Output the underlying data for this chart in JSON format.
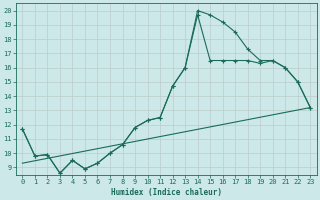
{
  "xlabel": "Humidex (Indice chaleur)",
  "bg_color": "#cce8e8",
  "line_color": "#1a6b5a",
  "grid_color": "#aacccc",
  "xlim": [
    -0.5,
    23.5
  ],
  "ylim": [
    8.5,
    20.5
  ],
  "xticks": [
    0,
    1,
    2,
    3,
    4,
    5,
    6,
    7,
    8,
    9,
    10,
    11,
    12,
    13,
    14,
    15,
    16,
    17,
    18,
    19,
    20,
    21,
    22,
    23
  ],
  "yticks": [
    9,
    10,
    11,
    12,
    13,
    14,
    15,
    16,
    17,
    18,
    19,
    20
  ],
  "line1_x": [
    0,
    1,
    2,
    3,
    4,
    5,
    6,
    7,
    8,
    9,
    10,
    11,
    12,
    13,
    14,
    15,
    16,
    17,
    18,
    19,
    20,
    21,
    22,
    23
  ],
  "line1_y": [
    11.7,
    9.8,
    9.9,
    8.6,
    9.5,
    8.9,
    9.3,
    10.0,
    10.6,
    11.8,
    12.3,
    12.5,
    14.7,
    16.0,
    20.0,
    19.7,
    19.2,
    18.5,
    17.3,
    16.5,
    16.5,
    16.0,
    15.0,
    13.2
  ],
  "line2_x": [
    0,
    1,
    2,
    3,
    4,
    5,
    6,
    7,
    8,
    9,
    10,
    11,
    12,
    13,
    14,
    15,
    16,
    17,
    18,
    19,
    20,
    21,
    22,
    23
  ],
  "line2_y": [
    11.7,
    9.8,
    9.9,
    8.6,
    9.5,
    8.9,
    9.3,
    10.0,
    10.6,
    11.8,
    12.3,
    12.5,
    14.7,
    16.0,
    19.7,
    16.5,
    16.5,
    16.5,
    16.5,
    16.3,
    16.5,
    16.0,
    15.0,
    13.2
  ],
  "line3_x": [
    0,
    23
  ],
  "line3_y": [
    9.3,
    13.2
  ]
}
